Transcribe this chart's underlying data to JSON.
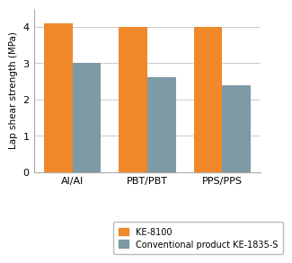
{
  "categories": [
    "Al/Al",
    "PBT/PBT",
    "PPS/PPS"
  ],
  "ke8100_values": [
    4.1,
    4.0,
    4.0
  ],
  "conventional_values": [
    3.0,
    2.6,
    2.4
  ],
  "ke8100_color": "#F0882A",
  "conventional_color": "#7D9AA5",
  "ylabel": "Lap shear strength (MPa)",
  "ylim": [
    0,
    4.5
  ],
  "yticks": [
    0,
    1,
    2,
    3,
    4
  ],
  "legend_ke8100": "KE-8100",
  "legend_conventional": "Conventional product KE-1835-S",
  "bar_width": 0.38,
  "background_color": "#ffffff",
  "grid_color": "#cccccc",
  "ylabel_fontsize": 7.5,
  "tick_fontsize": 8,
  "legend_fontsize": 7
}
